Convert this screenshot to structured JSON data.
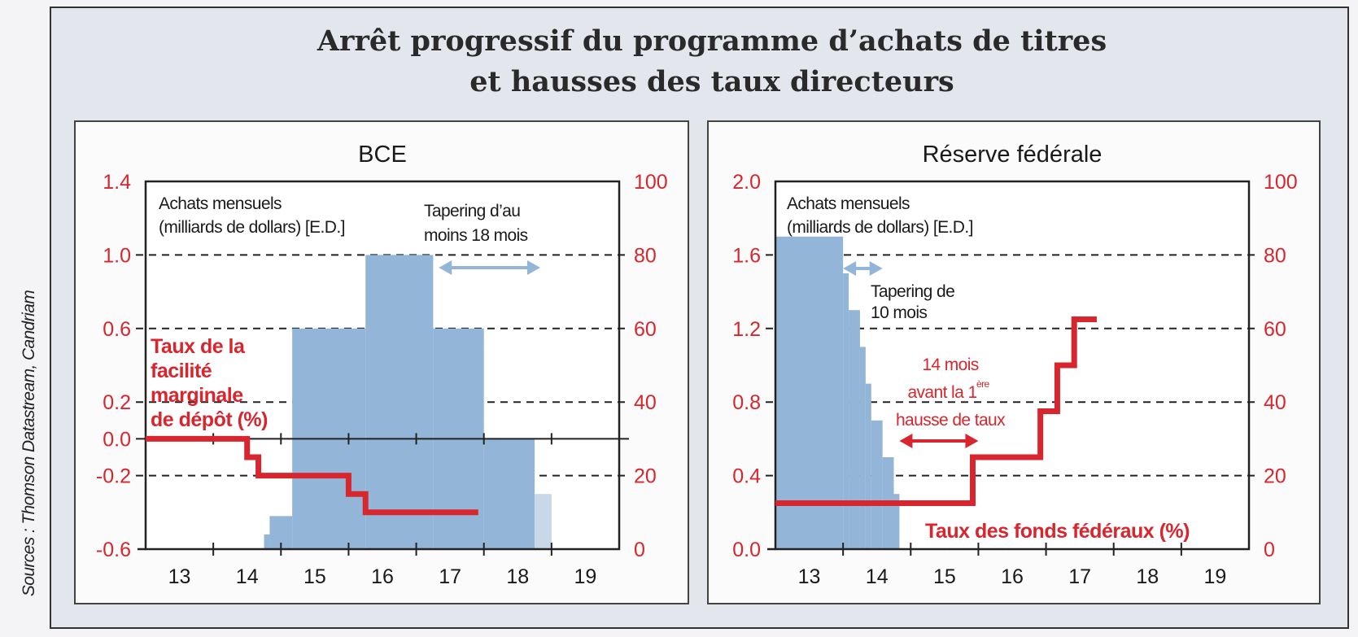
{
  "title_lines": [
    "Arrêt progressif du programme d’achats de titres",
    "et hausses des taux directeurs"
  ],
  "sources": "Sources : Thomson Datastream, Candriam",
  "colors": {
    "rate_line": "#d7262e",
    "purchases": "#93b5d8",
    "purchases_light": "#c8d8e8",
    "tick_labels": "#d7262e",
    "background": "#e4e6ee",
    "panel": "#fbfbfb"
  },
  "chart_data": [
    {
      "type": "bar+step-line",
      "title": "BCE",
      "x_ticks": [
        "13",
        "14",
        "15",
        "16",
        "17",
        "18",
        "19"
      ],
      "xlim": [
        "2013-01",
        "2019-12"
      ],
      "left_axis": {
        "ticks": [
          "1.4",
          "1.0",
          "0.6",
          "0.2",
          "0.0",
          "-0.2",
          "-0.6"
        ],
        "ylim": [
          -0.6,
          1.4
        ],
        "dashed_at": [
          1.0,
          0.6,
          0.2,
          -0.2
        ],
        "solid_at": 0.0
      },
      "right_axis": {
        "ticks": [
          "100",
          "80",
          "60",
          "40",
          "20",
          "0"
        ],
        "ylim": [
          0,
          100
        ]
      },
      "purchases": {
        "name_lines": [
          "Achats mensuels",
          "(milliards de dollars) [E.D.]"
        ],
        "axis": "right",
        "steps": [
          [
            "2014-10",
            4
          ],
          [
            "2014-11",
            9
          ],
          [
            "2015-03",
            60
          ],
          [
            "2016-04",
            80
          ],
          [
            "2017-04",
            60
          ],
          [
            "2018-01",
            30
          ],
          [
            "2018-10",
            15
          ]
        ],
        "end": "2019-01"
      },
      "rate": {
        "name_lines": [
          "Taux de la",
          "facilité",
          "marginale",
          "de dépôt (%)"
        ],
        "axis": "left",
        "steps": [
          [
            "2013-01",
            0.0
          ],
          [
            "2014-07",
            -0.1
          ],
          [
            "2014-09",
            -0.2
          ],
          [
            "2016-01",
            -0.3
          ],
          [
            "2016-04",
            -0.4
          ]
        ],
        "end": "2017-12"
      },
      "annotations": [
        {
          "id": "tapering",
          "lines": [
            "Tapering d’au",
            "moins 18 mois"
          ],
          "arrow": [
            "2017-05",
            "2018-11"
          ],
          "color": "#93b5d8"
        }
      ]
    },
    {
      "type": "bar+step-line",
      "title": "Réserve fédérale",
      "x_ticks": [
        "13",
        "14",
        "15",
        "16",
        "17",
        "18",
        "19"
      ],
      "xlim": [
        "2013-01",
        "2019-12"
      ],
      "left_axis": {
        "ticks": [
          "2.0",
          "1.6",
          "1.2",
          "0.8",
          "0.4",
          "0.0"
        ],
        "ylim": [
          0,
          2.0
        ],
        "dashed_at": [
          1.6,
          1.2,
          0.8,
          0.4
        ]
      },
      "right_axis": {
        "ticks": [
          "100",
          "80",
          "60",
          "40",
          "20",
          "0"
        ],
        "ylim": [
          0,
          100
        ]
      },
      "purchases": {
        "name_lines": [
          "Achats mensuels",
          "(milliards de dollars) [E.D.]"
        ],
        "axis": "right",
        "steps": [
          [
            "2013-01",
            85
          ],
          [
            "2014-01",
            75
          ],
          [
            "2014-02",
            65
          ],
          [
            "2014-04",
            55
          ],
          [
            "2014-05",
            45
          ],
          [
            "2014-06",
            35
          ],
          [
            "2014-08",
            25
          ],
          [
            "2014-10",
            15
          ]
        ],
        "end": "2014-11"
      },
      "rate": {
        "name_lines": [
          "Taux des fonds fédéraux (%)"
        ],
        "axis": "left",
        "steps": [
          [
            "2013-01",
            0.25
          ],
          [
            "2015-12",
            0.5
          ],
          [
            "2016-12",
            0.75
          ],
          [
            "2017-03",
            1.0
          ],
          [
            "2017-06",
            1.25
          ]
        ],
        "end": "2017-10"
      },
      "annotations": [
        {
          "id": "tapering",
          "lines": [
            "Tapering de",
            "10 mois"
          ],
          "arrow": [
            "2014-01",
            "2014-08"
          ],
          "color": "#93b5d8"
        },
        {
          "id": "delay",
          "lines": [
            "14 mois",
            "avant la 1",
            "ère",
            "hausse de taux"
          ],
          "arrow": [
            "2014-11",
            "2016-01"
          ],
          "color": "#d7262e"
        }
      ]
    }
  ]
}
